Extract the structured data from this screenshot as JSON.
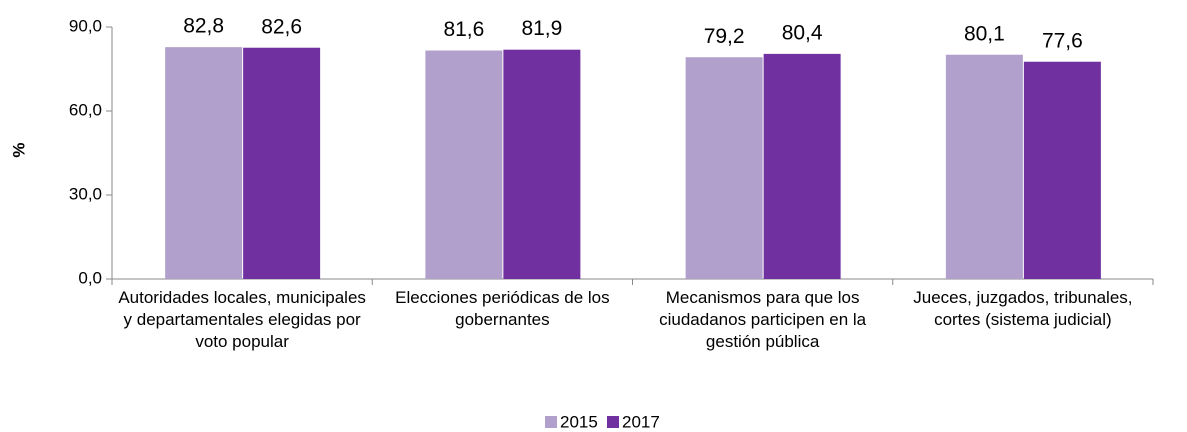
{
  "chart_data": {
    "type": "bar",
    "ylabel": "%",
    "categories": [
      "Autoridades locales, municipales y departamentales elegidas por voto popular",
      "Elecciones periódicas de los gobernantes",
      "Mecanismos para que los ciudadanos participen en la gestión pública",
      "Jueces, juzgados, tribunales, cortes (sistema judicial)"
    ],
    "series": [
      {
        "name": "2015",
        "color": "#b1a0cc",
        "values": [
          82.8,
          81.6,
          79.2,
          80.1
        ],
        "value_labels": [
          "82,8",
          "81,6",
          "79,2",
          "80,1"
        ]
      },
      {
        "name": "2017",
        "color": "#7030a0",
        "values": [
          82.6,
          81.9,
          80.4,
          77.6
        ],
        "value_labels": [
          "82,6",
          "81,9",
          "80,4",
          "77,6"
        ]
      }
    ],
    "ylim": [
      0,
      90
    ],
    "yticks": [
      {
        "value": 0,
        "label": "0,0"
      },
      {
        "value": 30,
        "label": "30,0"
      },
      {
        "value": 60,
        "label": "60,0"
      },
      {
        "value": 90,
        "label": "90,0"
      }
    ],
    "legend": "bottom"
  }
}
